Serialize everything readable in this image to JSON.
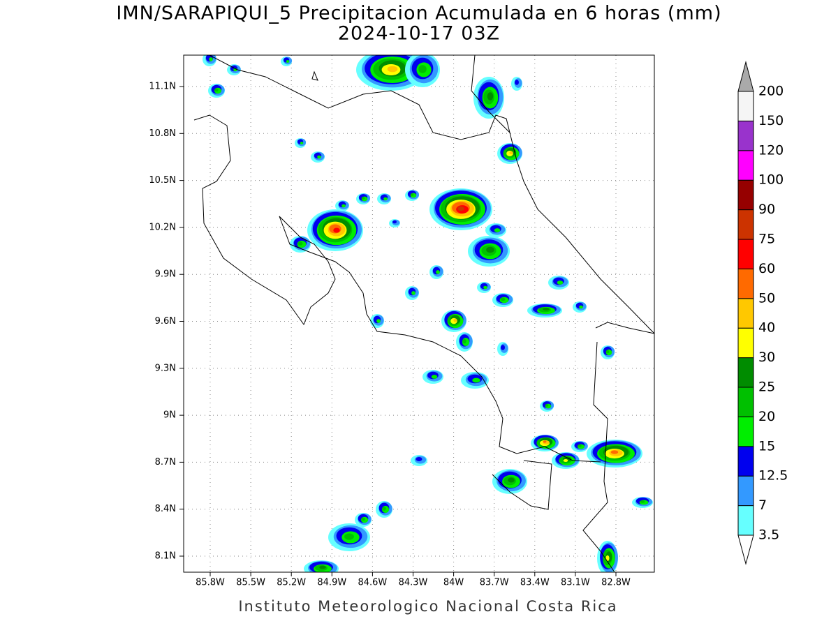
{
  "map": {
    "title": "IMN/SARAPIQUI_5 Precipitacion Acumulada en 6 horas (mm)",
    "subtitle": "2024-10-17 03Z",
    "lon_ticks": [
      "85.8W",
      "85.5W",
      "85.2W",
      "84.9W",
      "84.6W",
      "84.3W",
      "84W",
      "83.7W",
      "83.4W",
      "83.1W",
      "82.8W"
    ],
    "lat_ticks": [
      "11.1N",
      "10.8N",
      "10.5N",
      "10.2N",
      "9.9N",
      "9.6N",
      "9.3N",
      "9N",
      "8.7N",
      "8.4N",
      "8.1N"
    ],
    "colorbar": {
      "levels": [
        3.5,
        7,
        12.5,
        15,
        20,
        25,
        30,
        40,
        50,
        60,
        75,
        90,
        100,
        120,
        150,
        200
      ],
      "colors": [
        "#66ffff",
        "#3399ff",
        "#0000ee",
        "#00ee00",
        "#00c000",
        "#008c00",
        "#ffff00",
        "#ffc800",
        "#ff6a00",
        "#ff0000",
        "#cc3300",
        "#960000",
        "#ff00ff",
        "#9933cc",
        "#f5f5f5"
      ],
      "over_color": "#aaaaaa",
      "under_color": "#ffffff"
    },
    "credit": "Instituto Meteorologico Nacional Costa Rica"
  }
}
